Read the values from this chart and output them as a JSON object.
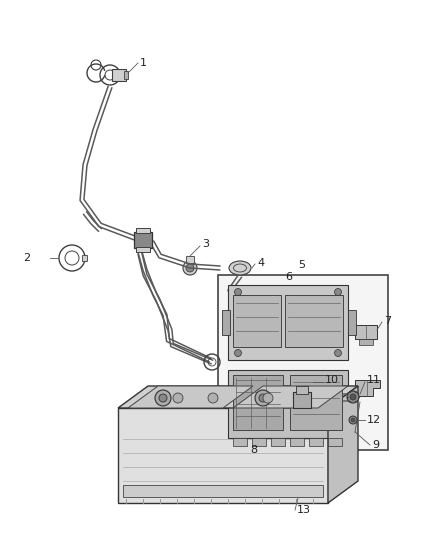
{
  "bg_color": "#ffffff",
  "line_color": "#3a3a3a",
  "label_color": "#222222",
  "label_font_size": 7.5,
  "fig_width": 4.38,
  "fig_height": 5.33,
  "wire_color": "#5a5a5a",
  "part_fill": "#d0d0d0",
  "part_edge": "#404040",
  "box_fill": "#f5f5f5",
  "box_edge": "#333333"
}
